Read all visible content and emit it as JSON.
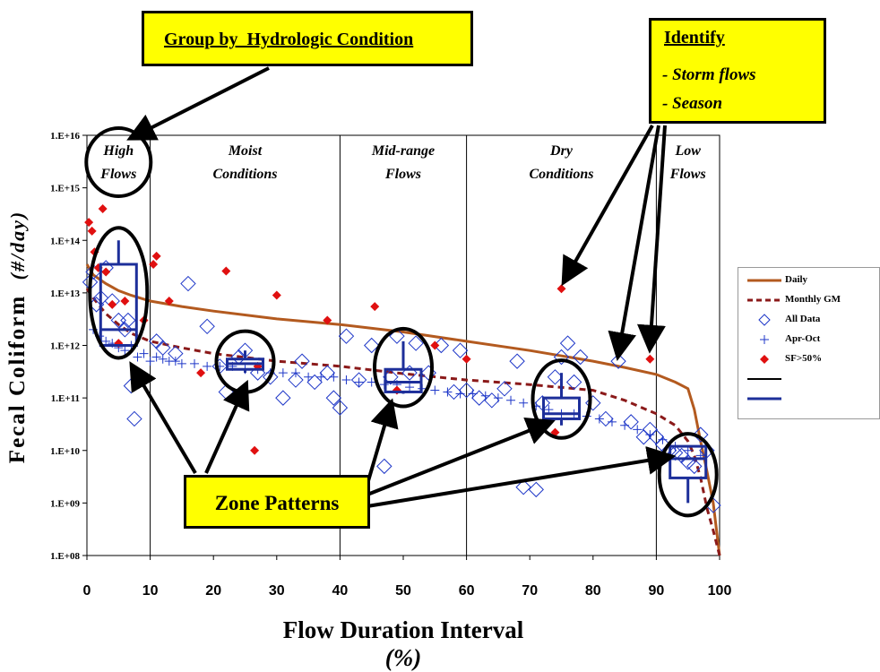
{
  "chart_data": {
    "type": "scatter",
    "title": "",
    "xlabel": "Flow Duration Interval",
    "xlabel_unit": "(%)",
    "ylabel": "Fecal Coliform",
    "ylabel_unit": "(#/day)",
    "xlim": [
      0,
      100
    ],
    "ylim_log10": [
      8,
      16
    ],
    "y_scale": "log",
    "x_ticks": [
      "0",
      "10",
      "20",
      "30",
      "40",
      "50",
      "60",
      "70",
      "80",
      "90",
      "100"
    ],
    "y_ticks": [
      "1.E+08",
      "1.E+09",
      "1.E+10",
      "1.E+11",
      "1.E+12",
      "1.E+13",
      "1.E+14",
      "1.E+15",
      "1.E+16"
    ],
    "zones": [
      {
        "name": [
          "High",
          "Flows"
        ],
        "from": 0,
        "to": 10
      },
      {
        "name": [
          "Moist",
          "Conditions"
        ],
        "from": 10,
        "to": 40
      },
      {
        "name": [
          "Mid-range",
          "Flows"
        ],
        "from": 40,
        "to": 60
      },
      {
        "name": [
          "Dry",
          "Conditions"
        ],
        "from": 60,
        "to": 90
      },
      {
        "name": [
          "Low",
          "Flows"
        ],
        "from": 90,
        "to": 100
      }
    ],
    "legend_position": "right",
    "series": [
      {
        "name": "Daily",
        "kind": "line",
        "color": "#b35a1f",
        "x": [
          0,
          1,
          3,
          5,
          7,
          10,
          15,
          20,
          30,
          40,
          50,
          60,
          70,
          80,
          85,
          90,
          93,
          95,
          96,
          97,
          98,
          99,
          100
        ],
        "y": [
          35000000000000.0,
          22000000000000.0,
          15000000000000.0,
          11000000000000.0,
          9000000000000.0,
          7000000000000.0,
          5500000000000.0,
          4500000000000.0,
          3200000000000.0,
          2500000000000.0,
          1800000000000.0,
          1200000000000.0,
          800000000000.0,
          500000000000.0,
          380000000000.0,
          280000000000.0,
          200000000000.0,
          150000000000.0,
          60000000000.0,
          15000000000.0,
          4000000000.0,
          1000000000.0,
          100000000.0
        ]
      },
      {
        "name": "Monthly GM",
        "kind": "dashed-line",
        "color": "#8b1a1a",
        "x": [
          0,
          1,
          3,
          5,
          7,
          10,
          15,
          20,
          30,
          40,
          50,
          60,
          70,
          80,
          85,
          90,
          93,
          95,
          96,
          97,
          98,
          99,
          100
        ],
        "y": [
          12000000000000.0,
          8000000000000.0,
          4000000000000.0,
          2500000000000.0,
          1700000000000.0,
          1200000000000.0,
          900000000000.0,
          700000000000.0,
          500000000000.0,
          400000000000.0,
          290000000000.0,
          220000000000.0,
          180000000000.0,
          140000000000.0,
          90000000000.0,
          50000000000.0,
          30000000000.0,
          15000000000.0,
          8000000000.0,
          3000000000.0,
          800000000.0,
          300000000.0,
          100000000.0
        ]
      },
      {
        "name": "All Data",
        "kind": "diamond",
        "color": "#1d36c8",
        "x": [
          0.5,
          1,
          1.5,
          2.2,
          3,
          4,
          5,
          6,
          6.5,
          7,
          7.5,
          11,
          12,
          14,
          16,
          19,
          21,
          22,
          24,
          25,
          27,
          29,
          31,
          33,
          34,
          36,
          38,
          39,
          40,
          41,
          43,
          45,
          47,
          48,
          49,
          51,
          52,
          54,
          56,
          58,
          59,
          60,
          62,
          64,
          66,
          68,
          69,
          71,
          72,
          74,
          75,
          76,
          77,
          78,
          80,
          82,
          84,
          86,
          88,
          89,
          90,
          91,
          92,
          93,
          94,
          95,
          96,
          97,
          98,
          99
        ],
        "y": [
          16000000000000.0,
          25000000000000.0,
          6000000000000.0,
          8000000000000.0,
          30000000000000.0,
          7000000000000.0,
          3000000000000.0,
          2000000000000.0,
          3000000000000.0,
          170000000000.0,
          40000000000.0,
          1200000000000.0,
          900000000000.0,
          700000000000.0,
          15000000000000.0,
          2300000000000.0,
          400000000000.0,
          130000000000.0,
          600000000000.0,
          800000000000.0,
          300000000000.0,
          250000000000.0,
          100000000000.0,
          220000000000.0,
          500000000000.0,
          200000000000.0,
          300000000000.0,
          100000000000.0,
          65000000000.0,
          1500000000000.0,
          220000000000.0,
          1000000000000.0,
          5000000000.0,
          250000000000.0,
          1500000000000.0,
          300000000000.0,
          1100000000000.0,
          300000000000.0,
          1000000000000.0,
          130000000000.0,
          800000000000.0,
          140000000000.0,
          100000000000.0,
          90000000000.0,
          150000000000.0,
          500000000000.0,
          2000000000.0,
          1800000000.0,
          80000000000.0,
          250000000000.0,
          600000000000.0,
          1100000000000.0,
          200000000000.0,
          600000000000.0,
          80000000000.0,
          40000000000.0,
          500000000000.0,
          35000000000.0,
          18000000000.0,
          25000000000.0,
          18000000000.0,
          13000000000.0,
          10000000000.0,
          9000000000.0,
          8000000000.0,
          6000000000.0,
          5000000000.0,
          20000000000.0,
          10000000000.0,
          900000000.0
        ]
      },
      {
        "name": "Apr-Oct",
        "kind": "plus",
        "color": "#1d36c8",
        "x": [
          1,
          2,
          3,
          4,
          5,
          6,
          7,
          8,
          9,
          10,
          11,
          12,
          13,
          14,
          15,
          17,
          19,
          21,
          23,
          25,
          27,
          29,
          31,
          33,
          35,
          37,
          39,
          41,
          43,
          45,
          47,
          49,
          51,
          53,
          55,
          57,
          59,
          61,
          63,
          65,
          67,
          69,
          71,
          73,
          75,
          77,
          79,
          81,
          83,
          85,
          87,
          89,
          91,
          93,
          95,
          97
        ],
        "y": [
          2000000000000.0,
          1500000000000.0,
          1200000000000.0,
          1100000000000.0,
          900000000000.0,
          800000000000.0,
          1000000000000.0,
          600000000000.0,
          700000000000.0,
          500000000000.0,
          600000000000.0,
          550000000000.0,
          500000000000.0,
          500000000000.0,
          450000000000.0,
          450000000000.0,
          400000000000.0,
          400000000000.0,
          400000000000.0,
          350000000000.0,
          350000000000.0,
          300000000000.0,
          300000000000.0,
          300000000000.0,
          250000000000.0,
          250000000000.0,
          250000000000.0,
          220000000000.0,
          200000000000.0,
          200000000000.0,
          180000000000.0,
          180000000000.0,
          160000000000.0,
          150000000000.0,
          140000000000.0,
          130000000000.0,
          120000000000.0,
          120000000000.0,
          110000000000.0,
          100000000000.0,
          90000000000.0,
          80000000000.0,
          70000000000.0,
          60000000000.0,
          50000000000.0,
          50000000000.0,
          45000000000.0,
          40000000000.0,
          35000000000.0,
          30000000000.0,
          25000000000.0,
          20000000000.0,
          16000000000.0,
          12000000000.0,
          10000000000.0,
          8000000000.0
        ]
      },
      {
        "name": "SF>50%",
        "kind": "filled-diamond",
        "color": "#e01010",
        "x": [
          0.3,
          0.8,
          1.2,
          1.8,
          2.5,
          3,
          4,
          5,
          6,
          9,
          10.5,
          11,
          13,
          18,
          22,
          26.5,
          27,
          30,
          38,
          45.5,
          49,
          55,
          60,
          75,
          74,
          89
        ],
        "y": [
          220000000000000.0,
          150000000000000.0,
          60000000000000.0,
          30000000000000.0,
          400000000000000.0,
          25000000000000.0,
          6000000000000.0,
          1100000000000.0,
          7000000000000.0,
          3000000000000.0,
          35000000000000.0,
          50000000000000.0,
          7000000000000.0,
          300000000000.0,
          26000000000000.0,
          10000000000.0,
          400000000000.0,
          9000000000000.0,
          3000000000000.0,
          5500000000000.0,
          140000000000.0,
          1000000000000.0,
          550000000000.0,
          12000000000000.0,
          22000000000.0,
          550000000000.0
        ]
      },
      {
        "name": "",
        "kind": "line",
        "color": "#000000",
        "x": [],
        "y": []
      },
      {
        "name": "",
        "kind": "line",
        "color": "#1d2f9a",
        "x": [],
        "y": []
      }
    ],
    "boxplots": [
      {
        "zone": "High Flows",
        "x": 5,
        "q1": 1000000000000.0,
        "median": 2000000000000.0,
        "q3": 35000000000000.0,
        "min": 1000000000000.0,
        "max": 100000000000000.0
      },
      {
        "zone": "Moist Conditions",
        "x": 25,
        "q1": 350000000000.0,
        "median": 450000000000.0,
        "q3": 550000000000.0,
        "min": 300000000000.0,
        "max": 800000000000.0
      },
      {
        "zone": "Mid-range Flows",
        "x": 50,
        "q1": 130000000000.0,
        "median": 200000000000.0,
        "q3": 350000000000.0,
        "min": 120000000000.0,
        "max": 1200000000000.0
      },
      {
        "zone": "Dry Conditions",
        "x": 75,
        "q1": 40000000000.0,
        "median": 50000000000.0,
        "q3": 100000000000.0,
        "min": 30000000000.0,
        "max": 300000000000.0
      },
      {
        "zone": "Low Flows",
        "x": 95,
        "q1": 3000000000.0,
        "median": 7000000000.0,
        "q3": 12000000000.0,
        "min": 1000000000.0,
        "max": 12000000000.0
      }
    ]
  },
  "callouts": {
    "group": {
      "title": "Group by  Hydrologic Condition"
    },
    "identify": {
      "title": "Identify",
      "lines": [
        "- Storm flows",
        "- Season"
      ]
    },
    "zone": {
      "title": "Zone Patterns"
    }
  },
  "colors": {
    "callout_fill": "#ffff00",
    "annotation_ellipse": "#000000",
    "boxplot": "#1d2f9a"
  }
}
